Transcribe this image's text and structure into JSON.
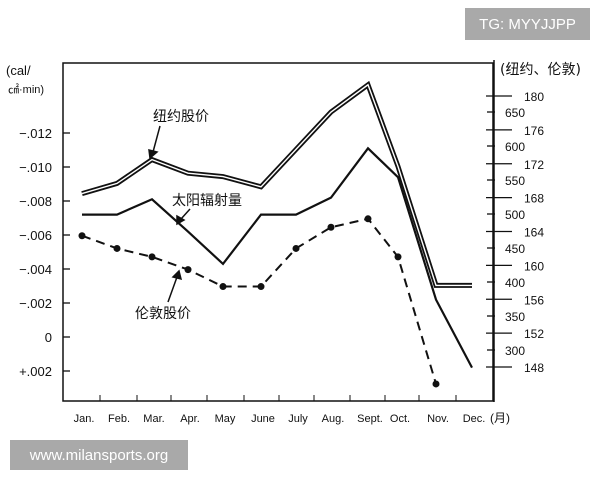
{
  "chart_data": {
    "type": "line",
    "categories": [
      "Jan.",
      "Feb.",
      "Mar.",
      "Apr.",
      "May",
      "June",
      "July",
      "Aug.",
      "Sept.",
      "Oct.",
      "Nov.",
      "Dec."
    ],
    "x_unit": "(月)",
    "left_axis": {
      "label_line1": "(cal/",
      "label_line2": "㎠·min)",
      "ticks": [
        -0.012,
        -0.01,
        -0.008,
        -0.006,
        -0.004,
        -0.002,
        0,
        0.002
      ],
      "tick_labels": [
        "−.012",
        "−.010",
        "−.008",
        "−.006",
        "−.004",
        "−.002",
        "0",
        "+.002"
      ],
      "ylim": [
        0.003,
        -0.013
      ]
    },
    "right_axis": {
      "label": "(纽约、伦敦)",
      "ny_ticks": [
        650,
        600,
        550,
        500,
        450,
        400,
        350,
        300
      ],
      "london_ticks": [
        180,
        176,
        172,
        168,
        164,
        160,
        156,
        152,
        148
      ]
    },
    "series": [
      {
        "name": "纽约股价",
        "axis": "right-ny",
        "style": "double-line",
        "values": [
          530,
          545,
          580,
          560,
          555,
          540,
          595,
          650,
          690,
          570,
          395,
          395
        ]
      },
      {
        "name": "太阳辐射量",
        "axis": "left",
        "style": "solid",
        "values": [
          -0.0072,
          -0.0072,
          -0.0081,
          -0.0062,
          -0.0043,
          -0.0072,
          -0.0072,
          -0.0082,
          -0.0111,
          -0.0094,
          -0.0022,
          0.0018
        ]
      },
      {
        "name": "伦敦股价",
        "axis": "right-london",
        "style": "dashed-dots",
        "values": [
          163.5,
          162,
          161,
          159.5,
          157.5,
          157.5,
          162,
          164.5,
          165.5,
          161,
          146,
          null
        ]
      }
    ],
    "grid": false
  },
  "watermarks": {
    "top": "TG: MYYJJPP",
    "bottom": "www.milansports.org"
  }
}
